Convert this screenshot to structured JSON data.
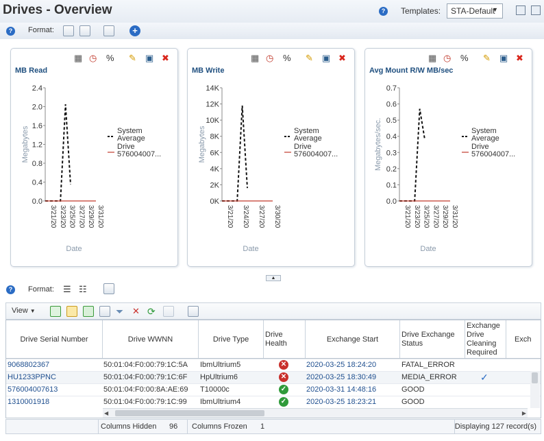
{
  "page": {
    "title": "Drives - Overview",
    "templates_label": "Templates:",
    "template_value": "STA-Default"
  },
  "toolbar": {
    "format_label": "Format:"
  },
  "charts": [
    {
      "title": "MB Read",
      "ylabel": "Megabytes",
      "xlabel": "Date",
      "yticks": [
        "2.4",
        "2.0",
        "1.6",
        "1.2",
        "0.8",
        "0.4",
        "0.0"
      ],
      "xticks": [
        "3/21/20",
        "3/23/20",
        "3/25/20",
        "3/27/20",
        "3/29/20",
        "3/31/20"
      ],
      "legend": [
        {
          "l1": "System",
          "l2": "Average"
        },
        {
          "l1": "Drive",
          "l2": "576004007..."
        }
      ]
    },
    {
      "title": "MB Write",
      "ylabel": "Megabytes",
      "xlabel": "Date",
      "yticks": [
        "14K",
        "12K",
        "10K",
        "8K",
        "6K",
        "4K",
        "2K",
        "0K"
      ],
      "xticks": [
        "3/21/20",
        "3/24/20",
        "3/27/20",
        "3/30/20"
      ],
      "legend": [
        {
          "l1": "System",
          "l2": "Average"
        },
        {
          "l1": "Drive",
          "l2": "576004007..."
        }
      ]
    },
    {
      "title": "Avg Mount R/W MB/sec",
      "ylabel": "Megabytes/sec.",
      "xlabel": "Date",
      "yticks": [
        "0.7",
        "0.6",
        "0.5",
        "0.4",
        "0.3",
        "0.2",
        "0.1",
        "0.0"
      ],
      "xticks": [
        "3/21/20",
        "3/23/20",
        "3/25/20",
        "3/27/20",
        "3/29/20",
        "3/31/20"
      ],
      "legend": [
        {
          "l1": "System",
          "l2": "Average"
        },
        {
          "l1": "Drive",
          "l2": "576004007..."
        }
      ]
    }
  ],
  "chart_data": [
    {
      "type": "line",
      "title": "MB Read",
      "xlabel": "Date",
      "ylabel": "Megabytes",
      "ylim": [
        0,
        2.4
      ],
      "x": [
        "3/21/20",
        "3/22/20",
        "3/23/20",
        "3/24/20",
        "3/25/20",
        "3/26/20",
        "3/27/20",
        "3/28/20",
        "3/29/20",
        "3/30/20",
        "3/31/20"
      ],
      "series": [
        {
          "name": "System Average",
          "values": [
            0,
            0,
            0,
            0,
            2.05,
            0.35,
            null,
            null,
            0,
            null,
            null
          ]
        },
        {
          "name": "Drive 576004007...",
          "values": [
            0,
            0,
            0,
            0,
            0,
            0,
            0,
            0,
            0,
            0,
            0
          ]
        }
      ]
    },
    {
      "type": "line",
      "title": "MB Write",
      "xlabel": "Date",
      "ylabel": "Megabytes",
      "ylim": [
        0,
        14000
      ],
      "x": [
        "3/21/20",
        "3/22/20",
        "3/23/20",
        "3/24/20",
        "3/25/20",
        "3/26/20",
        "3/27/20",
        "3/28/20",
        "3/29/20",
        "3/30/20",
        "3/31/20"
      ],
      "series": [
        {
          "name": "System Average",
          "values": [
            0,
            0,
            0,
            0,
            11800,
            1600,
            null,
            null,
            0,
            null,
            null
          ]
        },
        {
          "name": "Drive 576004007...",
          "values": [
            0,
            0,
            0,
            0,
            0,
            0,
            0,
            0,
            0,
            0,
            0
          ]
        }
      ]
    },
    {
      "type": "line",
      "title": "Avg Mount R/W MB/sec",
      "xlabel": "Date",
      "ylabel": "Megabytes/sec.",
      "ylim": [
        0,
        0.7
      ],
      "x": [
        "3/21/20",
        "3/22/20",
        "3/23/20",
        "3/24/20",
        "3/25/20",
        "3/26/20",
        "3/27/20",
        "3/28/20",
        "3/29/20",
        "3/30/20",
        "3/31/20"
      ],
      "series": [
        {
          "name": "System Average",
          "values": [
            0,
            0,
            0,
            0,
            0.57,
            0.38,
            null,
            null,
            0,
            null,
            null
          ]
        },
        {
          "name": "Drive 576004007...",
          "values": [
            0,
            0,
            0,
            0,
            0,
            0,
            0,
            0,
            0,
            0,
            0
          ]
        }
      ]
    }
  ],
  "table": {
    "view_label": "View",
    "format_label": "Format:",
    "headers": {
      "serial": "Drive Serial Number",
      "wwnn": "Drive WWNN",
      "type": "Drive Type",
      "health_1": "Drive",
      "health_2": "Health",
      "start": "Exchange Start",
      "status_1": "Drive Exchange",
      "status_2": "Status",
      "clean_1": "Exchange",
      "clean_2": "Drive",
      "clean_3": "Cleaning",
      "clean_4": "Required",
      "more": "Exch"
    },
    "rows": [
      {
        "serial": "9068802367",
        "wwnn": "50:01:04:F0:00:79:1C:5A",
        "type": "IbmUltrium5",
        "health": "error",
        "start": "2020-03-25 18:24:20",
        "status": "FATAL_ERROR",
        "clean": ""
      },
      {
        "serial": "HU1233PPNC",
        "wwnn": "50:01:04:F0:00:79:1C:6F",
        "type": "HpUltrium6",
        "health": "error",
        "start": "2020-03-25 18:30:49",
        "status": "MEDIA_ERROR",
        "clean": "✓"
      },
      {
        "serial": "576004007613",
        "wwnn": "50:01:04:F0:00:8A:AE:69",
        "type": "T10000c",
        "health": "good",
        "start": "2020-03-31 14:48:16",
        "status": "GOOD",
        "clean": ""
      },
      {
        "serial": "1310001918",
        "wwnn": "50:01:04:F0:00:79:1C:99",
        "type": "IbmUltrium4",
        "health": "good",
        "start": "2020-03-25 18:23:21",
        "status": "GOOD",
        "clean": ""
      }
    ],
    "footer": {
      "hidden_label": "Columns Hidden",
      "hidden_count": "96",
      "frozen_label": "Columns Frozen",
      "frozen_count": "1",
      "displaying": "Displaying 127 record(s)"
    }
  },
  "colors": {
    "title_blue": "#1f4f7f",
    "error": "#c9302c",
    "good": "#2f9a3a",
    "drive_line": "#c0392b"
  }
}
